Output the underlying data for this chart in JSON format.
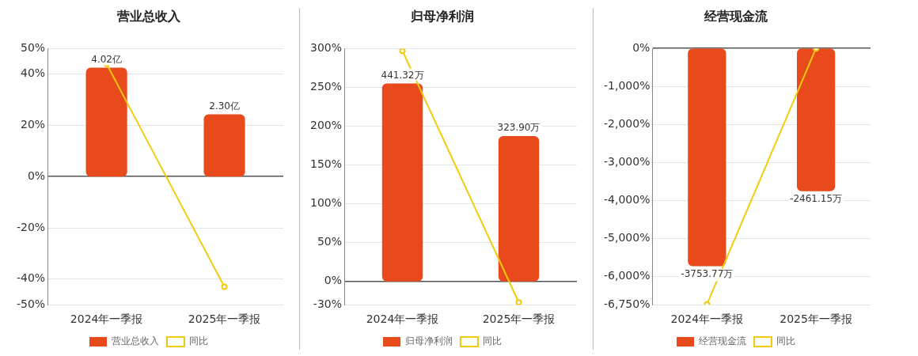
{
  "chart_data": [
    {
      "type": "bar",
      "title": "营业总收入",
      "categories": [
        "2024年一季报",
        "2025年一季报"
      ],
      "series": [
        {
          "name": "营业总收入",
          "axis": "y2",
          "color": "#e84a1c",
          "values": [
            4.02,
            2.3
          ],
          "value_labels": [
            "4.02亿",
            "2.30亿"
          ]
        },
        {
          "name": "同比",
          "type": "line",
          "color": "#f2cc0c",
          "values": [
            44,
            -43
          ]
        }
      ],
      "ylim": [
        -50,
        50
      ],
      "yticks": [
        {
          "value": -50,
          "label": "-50%"
        },
        {
          "value": -40,
          "label": "-40%"
        },
        {
          "value": -20,
          "label": "-20%"
        },
        {
          "value": 0,
          "label": "0%"
        },
        {
          "value": 20,
          "label": "20%"
        },
        {
          "value": 40,
          "label": "40%"
        },
        {
          "value": 50,
          "label": "50%"
        }
      ],
      "grid": "y",
      "legend": "bottom",
      "marker": "circle"
    },
    {
      "type": "bar",
      "title": "归母净利润",
      "categories": [
        "2024年一季报",
        "2025年一季报"
      ],
      "series": [
        {
          "name": "归母净利润",
          "axis": "y2",
          "color": "#e84a1c",
          "values": [
            441.32,
            323.9
          ],
          "value_labels": [
            "441.32万",
            "323.90万"
          ]
        },
        {
          "name": "同比",
          "type": "line",
          "color": "#f2cc0c",
          "values": [
            297,
            -27
          ]
        }
      ],
      "ylim": [
        -30,
        300
      ],
      "yticks": [
        {
          "value": -30,
          "label": "-30%"
        },
        {
          "value": 0,
          "label": "0%"
        },
        {
          "value": 50,
          "label": "50%"
        },
        {
          "value": 100,
          "label": "100%"
        },
        {
          "value": 150,
          "label": "150%"
        },
        {
          "value": 200,
          "label": "200%"
        },
        {
          "value": 250,
          "label": "250%"
        },
        {
          "value": 300,
          "label": "300%"
        }
      ],
      "grid": "y",
      "legend": "bottom",
      "marker": "circle"
    },
    {
      "type": "bar",
      "title": "经营现金流",
      "categories": [
        "2024年一季报",
        "2025年一季报"
      ],
      "series": [
        {
          "name": "经营现金流",
          "axis": "y2",
          "color": "#e84a1c",
          "values": [
            -3753.77,
            -2461.15
          ],
          "value_labels": [
            "-3753.77万",
            "-2461.15万"
          ]
        },
        {
          "name": "同比",
          "type": "line",
          "color": "#f2cc0c",
          "values": [
            -6740,
            0
          ]
        }
      ],
      "ylim": [
        -6750,
        0
      ],
      "yticks": [
        {
          "value": -6750,
          "label": "-6,750%"
        },
        {
          "value": -6000,
          "label": "-6,000%"
        },
        {
          "value": -5000,
          "label": "-5,000%"
        },
        {
          "value": -4000,
          "label": "-4,000%"
        },
        {
          "value": -3000,
          "label": "-3,000%"
        },
        {
          "value": -2000,
          "label": "-2,000%"
        },
        {
          "value": -1000,
          "label": "-1,000%"
        },
        {
          "value": 0,
          "label": "0%"
        }
      ],
      "grid": "y",
      "legend": "bottom",
      "marker": "circle"
    }
  ]
}
